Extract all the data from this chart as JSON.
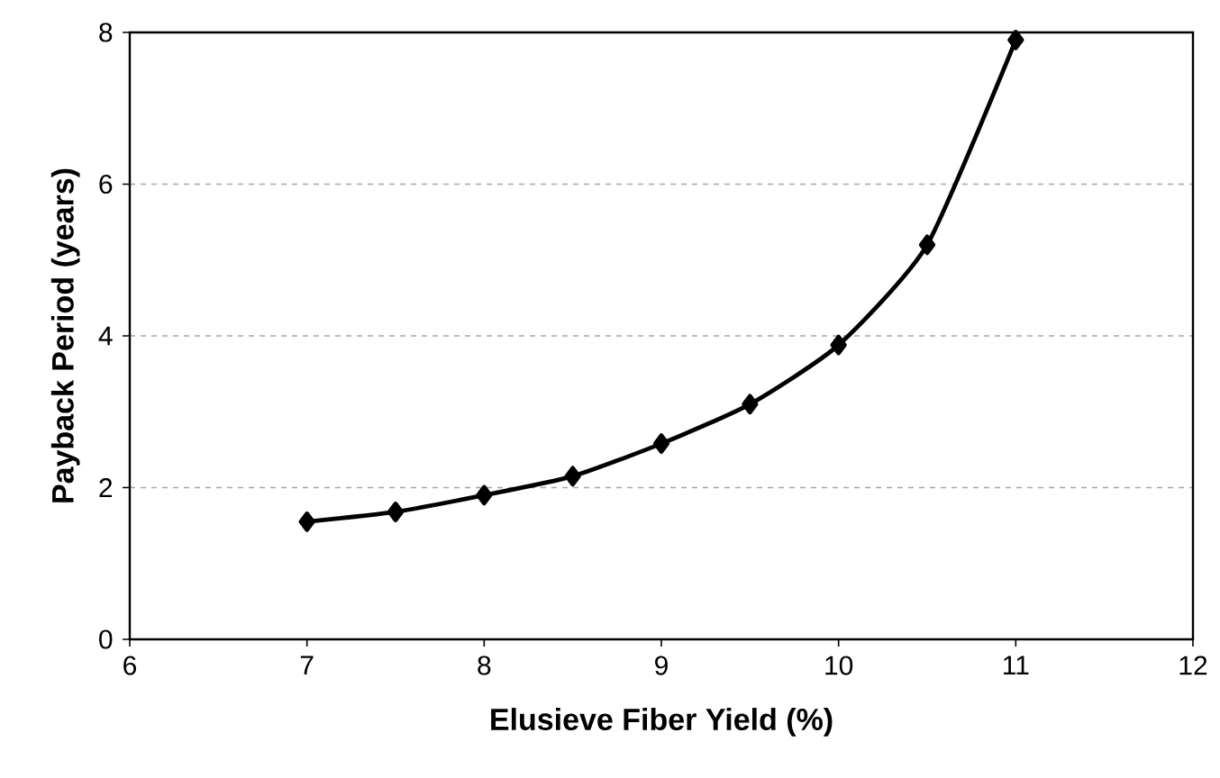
{
  "chart_data": {
    "type": "line",
    "xlabel": "Elusieve Fiber Yield (%)",
    "ylabel": "Payback Period (years)",
    "x": [
      7,
      7.5,
      8,
      8.5,
      9,
      9.5,
      10,
      10.5,
      11
    ],
    "series": [
      {
        "color": "#000000",
        "values": [
          1.55,
          1.68,
          1.9,
          2.15,
          2.58,
          3.1,
          3.88,
          5.2,
          7.9
        ]
      }
    ],
    "xlim": [
      6,
      12
    ],
    "ylim": [
      0,
      8
    ],
    "xticks": [
      6,
      7,
      8,
      9,
      10,
      11,
      12
    ],
    "yticks": [
      0,
      2,
      4,
      6,
      8
    ],
    "grid": "y",
    "marker": "diamond",
    "line_style": "solid"
  }
}
